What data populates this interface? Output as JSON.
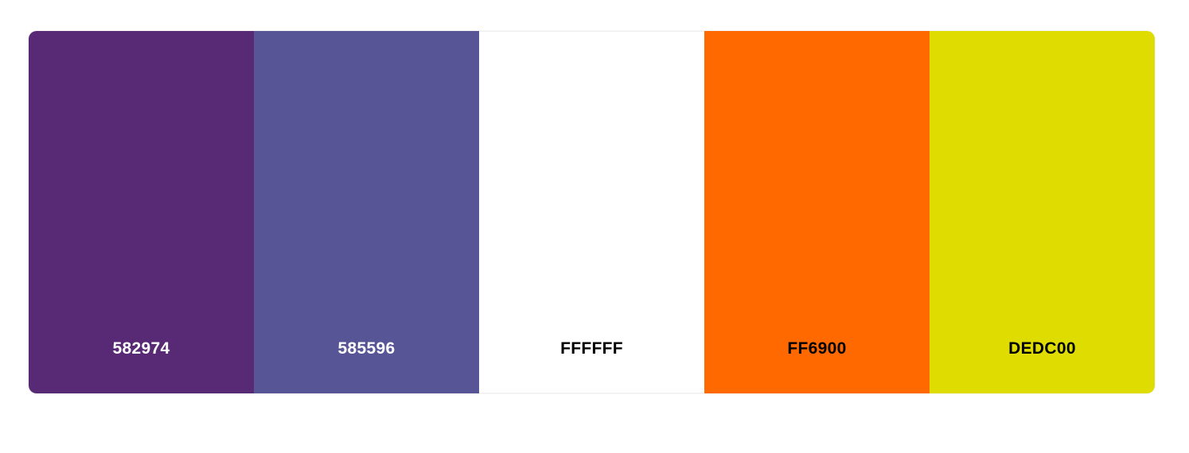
{
  "palette": {
    "swatches": [
      {
        "hex": "582974",
        "color": "#582974",
        "text_color": "#ffffff"
      },
      {
        "hex": "585596",
        "color": "#585596",
        "text_color": "#ffffff"
      },
      {
        "hex": "FFFFFF",
        "color": "#FFFFFF",
        "text_color": "#000000"
      },
      {
        "hex": "FF6900",
        "color": "#FF6900",
        "text_color": "#000000"
      },
      {
        "hex": "DEDC00",
        "color": "#DEDC00",
        "text_color": "#000000"
      }
    ]
  }
}
